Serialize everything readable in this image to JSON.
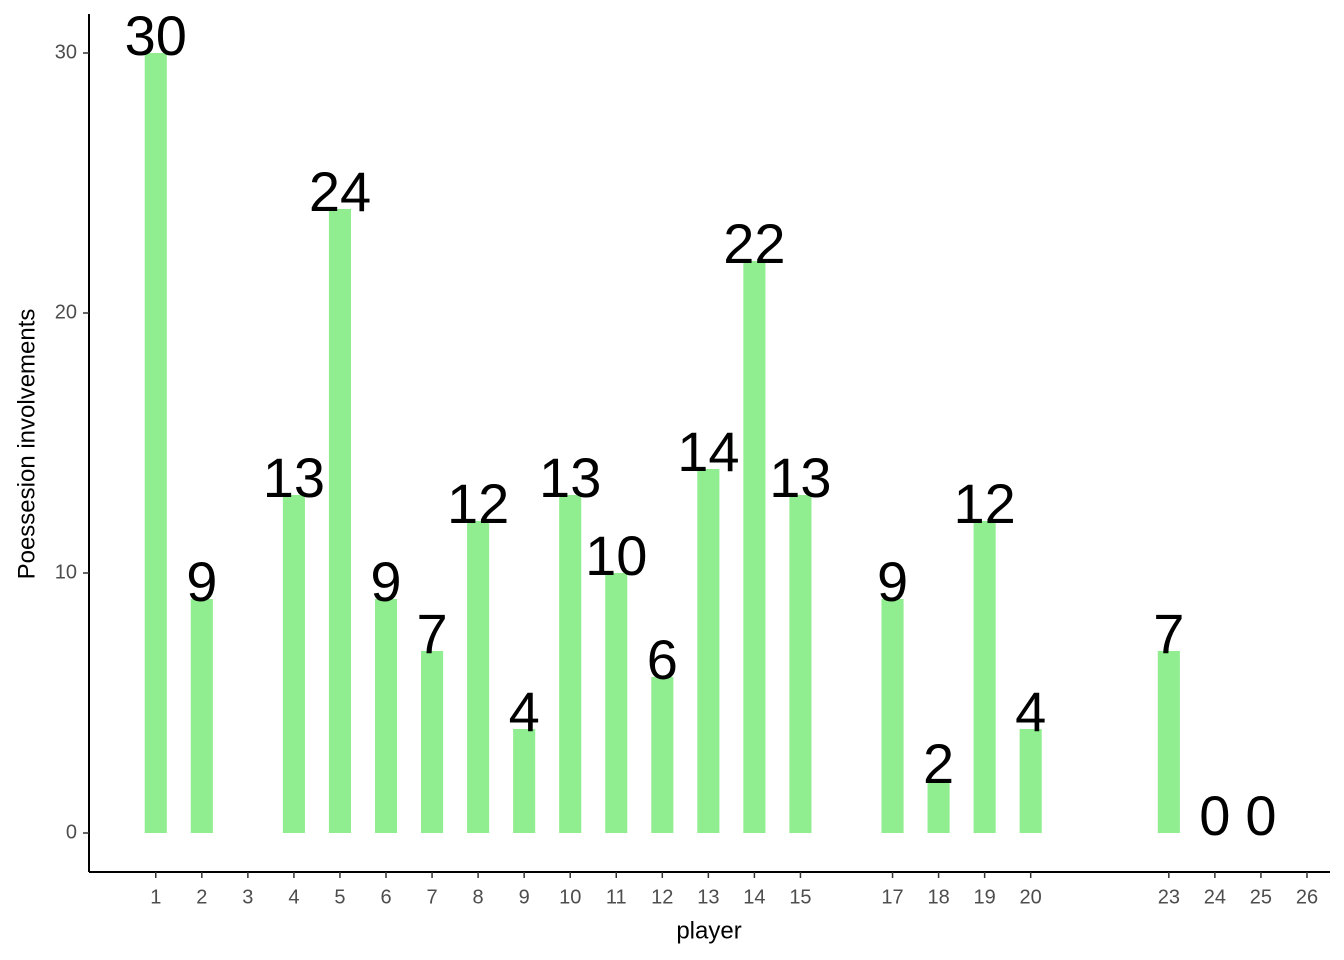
{
  "chart_data": {
    "type": "bar",
    "x_label": "player",
    "y_label": "Poessesion involvements",
    "x": [
      1,
      2,
      4,
      5,
      6,
      7,
      8,
      9,
      10,
      11,
      12,
      13,
      14,
      15,
      17,
      18,
      19,
      20,
      23,
      24,
      25
    ],
    "values": [
      30,
      9,
      13,
      24,
      9,
      7,
      12,
      4,
      13,
      10,
      6,
      14,
      22,
      13,
      9,
      2,
      12,
      4,
      7,
      0,
      0
    ],
    "color": "#90ee90",
    "xlim": [
      -0.45,
      26.5
    ],
    "xticks": [
      1,
      2,
      3,
      4,
      5,
      6,
      7,
      8,
      9,
      10,
      11,
      12,
      13,
      14,
      15,
      17,
      18,
      19,
      20,
      23,
      24,
      25,
      26
    ],
    "ylim": [
      -1.5,
      31.5
    ],
    "yticks": [
      0,
      10,
      20,
      30
    ],
    "grid": false
  }
}
